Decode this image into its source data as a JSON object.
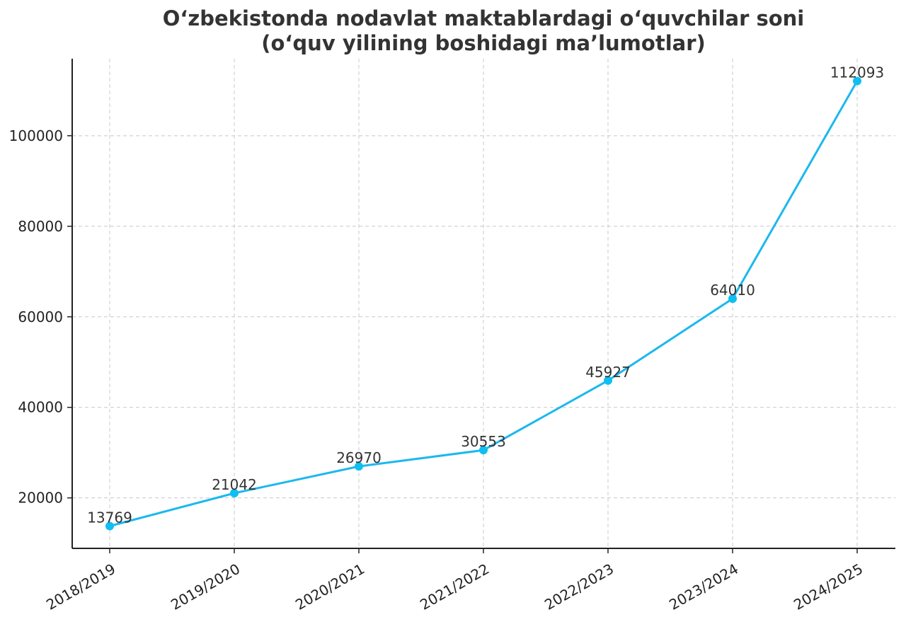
{
  "chart_data": {
    "type": "line",
    "title": "O‘zbekistonda nodavlat maktablardagi o‘quvchilar soni",
    "subtitle": "(o‘quv yilining boshidagi ma’lumotlar)",
    "xlabel": "",
    "ylabel": "",
    "categories": [
      "2018/2019",
      "2019/2020",
      "2020/2021",
      "2021/2022",
      "2022/2023",
      "2023/2024",
      "2024/2025"
    ],
    "values": [
      13769,
      21042,
      26970,
      30553,
      45927,
      64010,
      112093
    ],
    "data_labels": [
      "13769",
      "21042",
      "26970",
      "30553",
      "45927",
      "64010",
      "112093"
    ],
    "y_ticks": [
      20000,
      40000,
      60000,
      80000,
      100000
    ],
    "y_tick_labels": [
      "20000",
      "40000",
      "60000",
      "80000",
      "100000"
    ],
    "ylim": [
      8853,
      117009
    ],
    "grid": true,
    "legend": "none",
    "colors": {
      "line": "#1cb8ee",
      "marker": "#0fbff2",
      "grid": "#c8c8c8",
      "axis": "#222222",
      "text": "#333333"
    }
  }
}
